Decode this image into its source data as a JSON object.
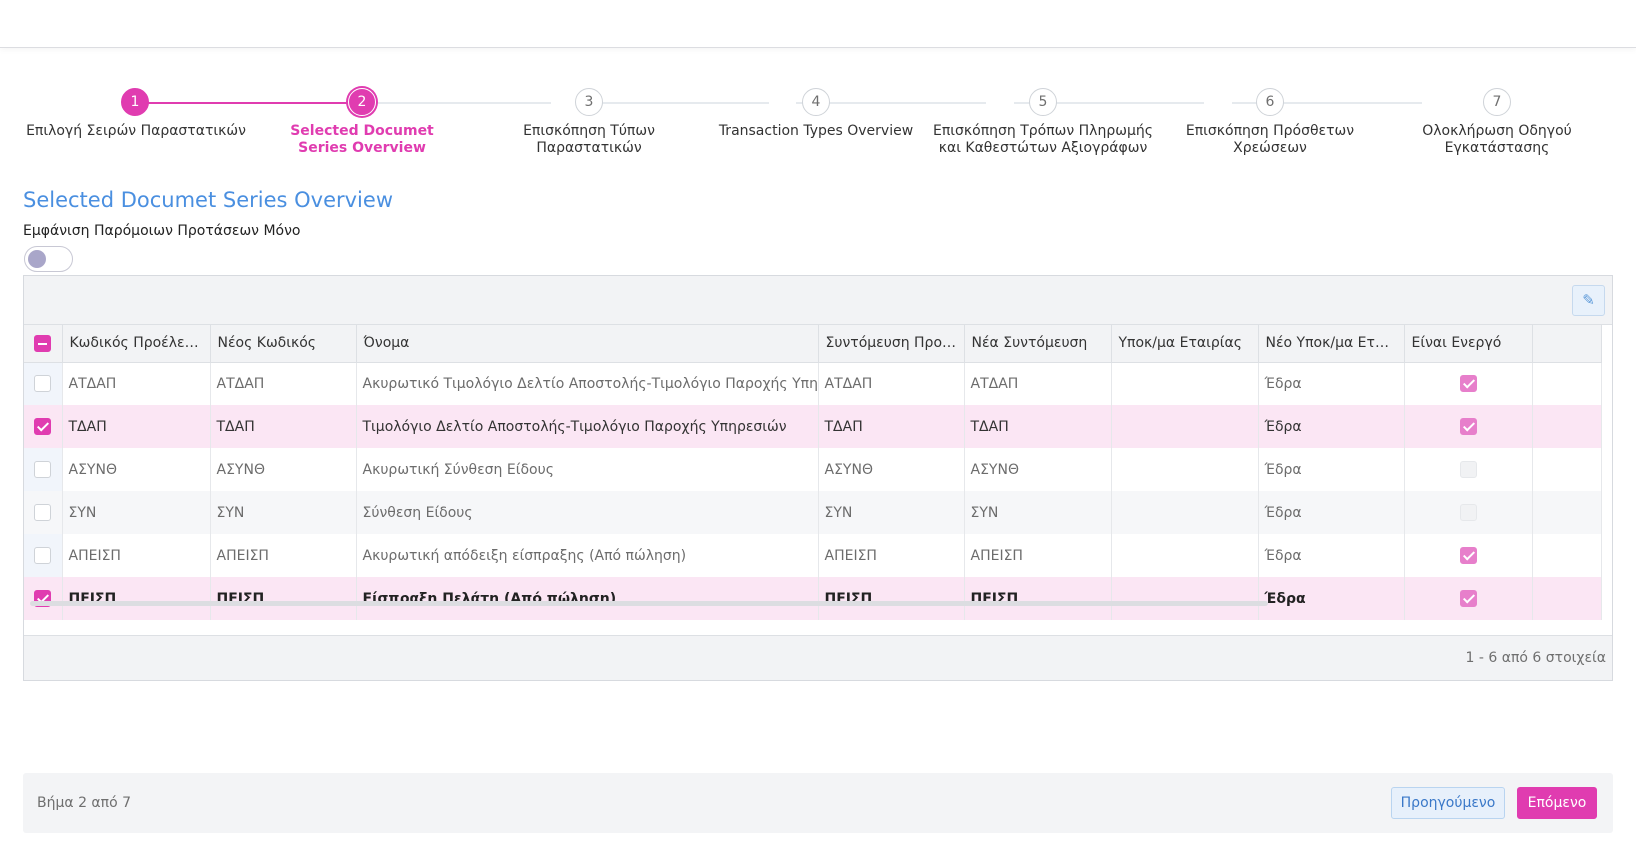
{
  "stepper": {
    "steps": [
      {
        "number": "1",
        "label": "Επιλογή Σειρών Παραστατικών",
        "state": "done"
      },
      {
        "number": "2",
        "label": "Selected Documet Series Overview",
        "state": "current"
      },
      {
        "number": "3",
        "label": "Επισκόπηση Τύπων Παραστατικών",
        "state": "pending"
      },
      {
        "number": "4",
        "label": "Transaction Types Overview",
        "state": "pending"
      },
      {
        "number": "5",
        "label": "Επισκόπηση Τρόπων Πληρωμής και Καθεστώτων Αξιογράφων",
        "state": "pending"
      },
      {
        "number": "6",
        "label": "Επισκόπηση Πρόσθετων Χρεώσεων",
        "state": "pending"
      },
      {
        "number": "7",
        "label": "Ολοκλήρωση Οδηγού Εγκατάστασης",
        "state": "pending"
      }
    ]
  },
  "section": {
    "title": "Selected Documet Series Overview",
    "filter_label": "Εμφάνιση Παρόμοιων Προτάσεων Μόνο",
    "filter_on": false
  },
  "grid": {
    "edit_icon": "pencil-icon",
    "columns": [
      "Κωδικός Προέλευσης",
      "Νέος Κωδικός",
      "Όνομα",
      "Συντόμευση Προέλ...",
      "Νέα Συντόμευση",
      "Υποκ/μα Εταιρίας",
      "Νέο Υποκ/μα Εταιρ...",
      "Είναι Ενεργό"
    ],
    "rows": [
      {
        "selected": false,
        "orig_code": "ΑΤΔΑΠ",
        "new_code": "ΑΤΔΑΠ",
        "name": "Ακυρωτικό Τιμολόγιο Δελτίο Αποστολής-Τιμολόγιο Παροχής Υπηρεσιών",
        "orig_short": "ΑΤΔΑΠ",
        "new_short": "ΑΤΔΑΠ",
        "branch": "",
        "new_branch": "Έδρα",
        "active": true
      },
      {
        "selected": true,
        "orig_code": "ΤΔΑΠ",
        "new_code": "ΤΔΑΠ",
        "name": "Τιμολόγιο Δελτίο Αποστολής-Τιμολόγιο Παροχής Υπηρεσιών",
        "orig_short": "ΤΔΑΠ",
        "new_short": "ΤΔΑΠ",
        "branch": "",
        "new_branch": "Έδρα",
        "active": true
      },
      {
        "selected": false,
        "orig_code": "ΑΣΥΝΘ",
        "new_code": "ΑΣΥΝΘ",
        "name": "Ακυρωτική Σύνθεση Είδους",
        "orig_short": "ΑΣΥΝΘ",
        "new_short": "ΑΣΥΝΘ",
        "branch": "",
        "new_branch": "Έδρα",
        "active": false
      },
      {
        "selected": false,
        "orig_code": "ΣΥΝ",
        "new_code": "ΣΥΝ",
        "name": "Σύνθεση Είδους",
        "orig_short": "ΣΥΝ",
        "new_short": "ΣΥΝ",
        "branch": "",
        "new_branch": "Έδρα",
        "active": false
      },
      {
        "selected": false,
        "orig_code": "ΑΠΕΙΣΠ",
        "new_code": "ΑΠΕΙΣΠ",
        "name": "Ακυρωτική απόδειξη είσπραξης (Από πώληση)",
        "orig_short": "ΑΠΕΙΣΠ",
        "new_short": "ΑΠΕΙΣΠ",
        "branch": "",
        "new_branch": "Έδρα",
        "active": true
      },
      {
        "selected": true,
        "orig_code": "ΠΕΙΣΠ",
        "new_code": "ΠΕΙΣΠ",
        "name": "Είσπραξη Πελάτη (Από πώληση)",
        "orig_short": "ΠΕΙΣΠ",
        "new_short": "ΠΕΙΣΠ",
        "branch": "",
        "new_branch": "Έδρα",
        "active": true
      }
    ],
    "pager_info": "1 - 6 από 6 στοιχεία"
  },
  "footer": {
    "step_info": "Βήμα 2 από 7",
    "prev_label": "Προηγούμενο",
    "next_label": "Επόμενο"
  },
  "colors": {
    "accent": "#e03cb0",
    "title": "#4a8fe0"
  }
}
